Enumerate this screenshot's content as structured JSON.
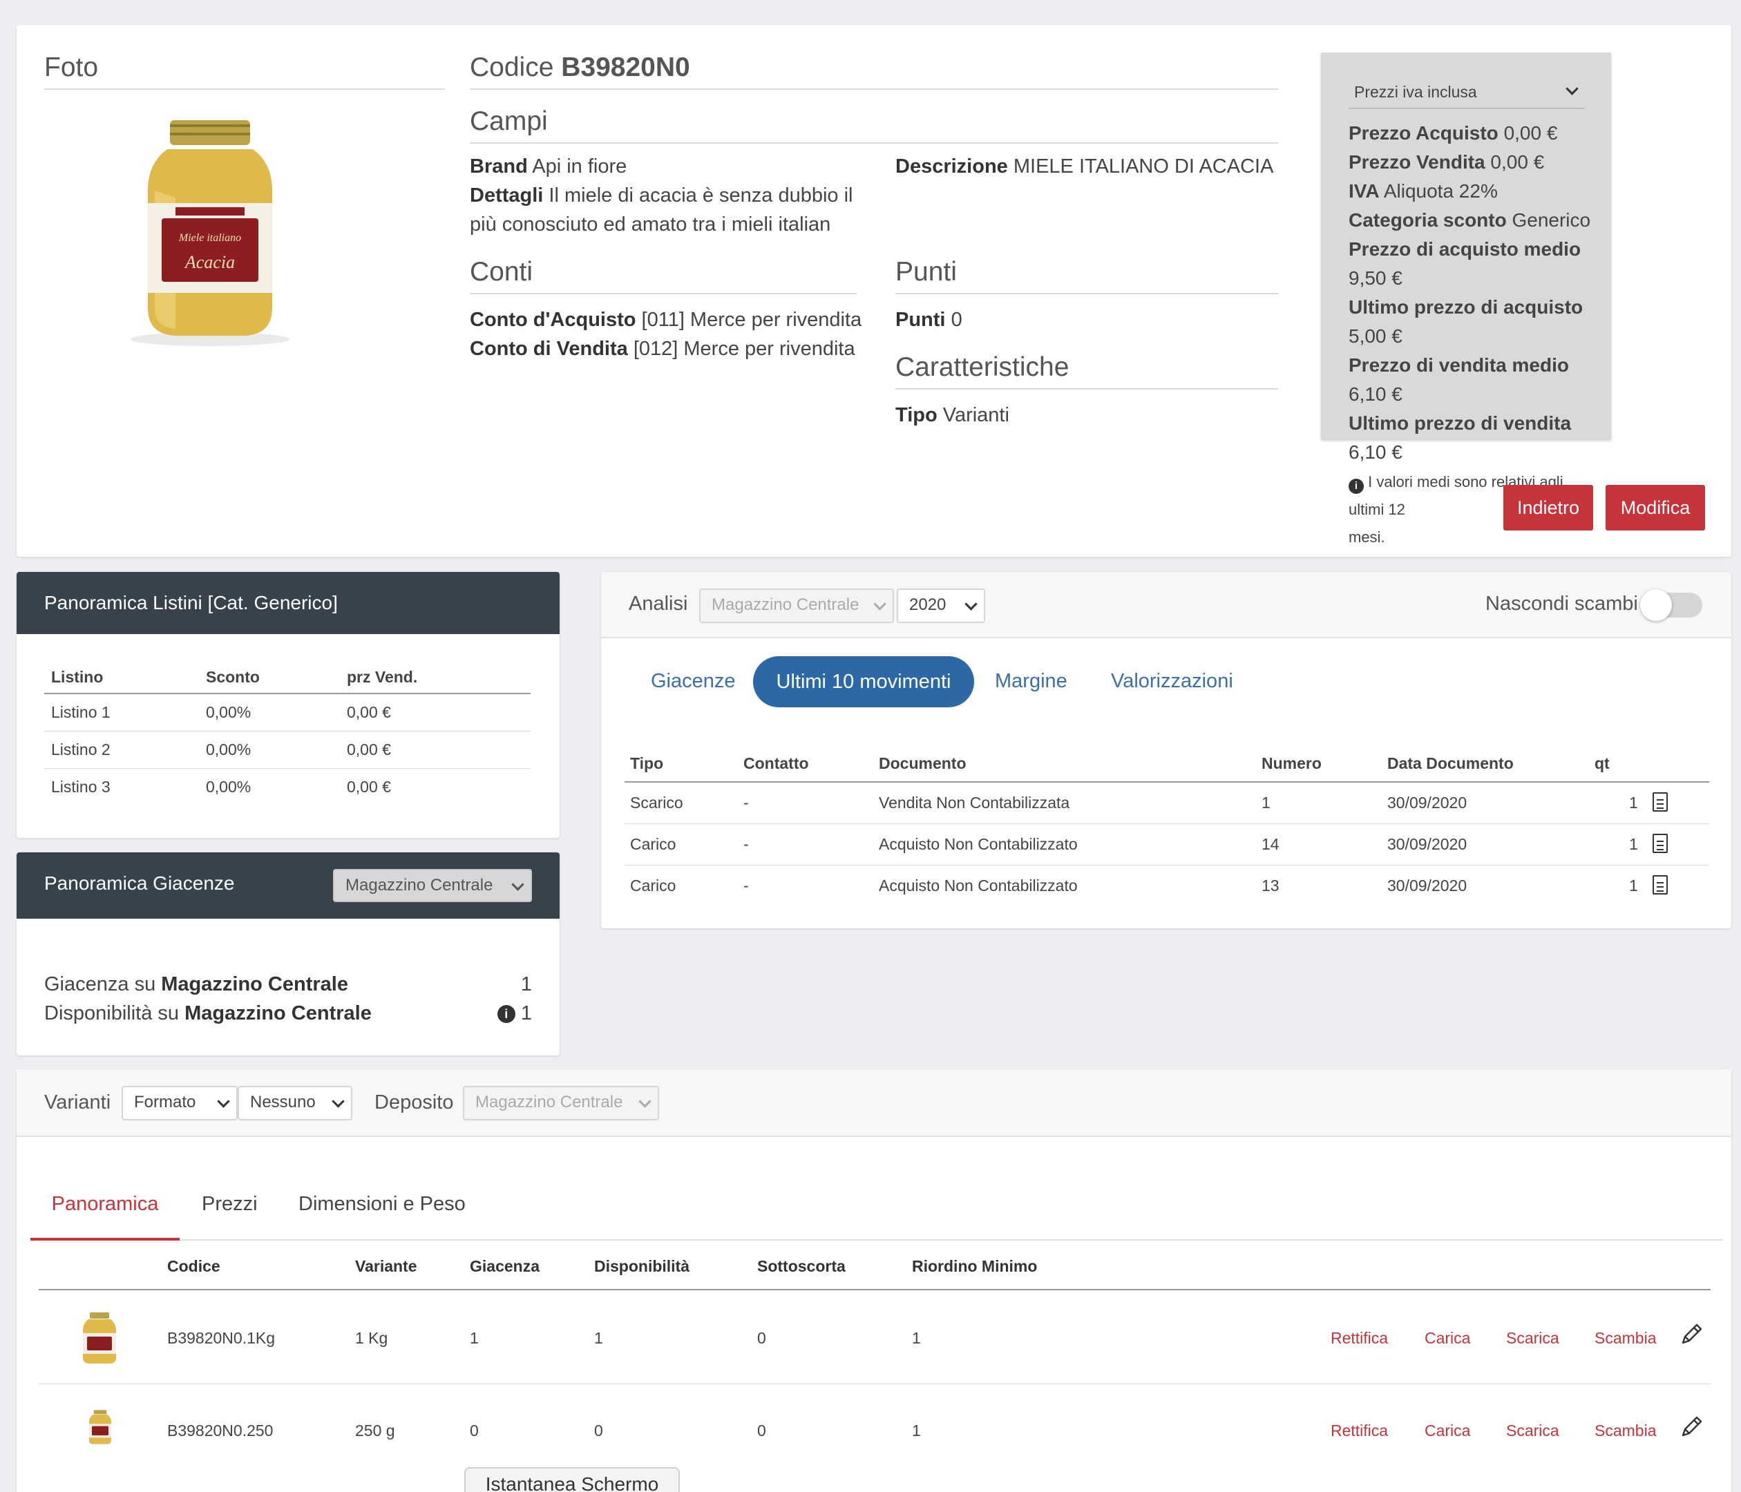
{
  "header": {
    "foto_title": "Foto",
    "codice_label": "Codice",
    "codice_value": "B39820N0"
  },
  "campi": {
    "title": "Campi",
    "brand_label": "Brand",
    "brand_value": "Api in fiore",
    "dettagli_label": "Dettagli",
    "dettagli_value_1": "Il miele di acacia è senza dubbio il",
    "dettagli_value_2": "più conosciuto ed amato tra i mieli italian",
    "descrizione_label": "Descrizione",
    "descrizione_value": "MIELE ITALIANO DI ACACIA"
  },
  "conti": {
    "title": "Conti",
    "acquisto_label": "Conto d'Acquisto",
    "acquisto_value": "[011] Merce per rivendita",
    "vendita_label": "Conto di Vendita",
    "vendita_value": "[012] Merce per rivendita"
  },
  "punti": {
    "title": "Punti",
    "label": "Punti",
    "value": "0"
  },
  "caratteristiche": {
    "title": "Caratteristiche",
    "tipo_label": "Tipo",
    "tipo_value": "Varianti"
  },
  "prezzi": {
    "select": "Prezzi iva inclusa",
    "rows": [
      {
        "label": "Prezzo Acquisto",
        "value": "0,00 €"
      },
      {
        "label": "Prezzo Vendita",
        "value": "0,00 €"
      },
      {
        "label": "IVA",
        "value": "Aliquota 22%"
      },
      {
        "label": "Categoria sconto",
        "value": "Generico"
      },
      {
        "label": "Prezzo di acquisto medio",
        "value": "9,50 €"
      },
      {
        "label": "Ultimo prezzo di acquisto",
        "value": "5,00 €"
      },
      {
        "label": "Prezzo di vendita medio",
        "value": "6,10 €"
      },
      {
        "label": "Ultimo prezzo di vendita",
        "value": "6,10 €"
      }
    ],
    "note_1": "I valori medi sono relativi agli ultimi 12",
    "note_2": "mesi."
  },
  "buttons": {
    "indietro": "Indietro",
    "modifica": "Modifica"
  },
  "listini": {
    "title": "Panoramica Listini [Cat. Generico]",
    "headers": [
      "Listino",
      "Sconto",
      "prz Vend."
    ],
    "rows": [
      [
        "Listino 1",
        "0,00%",
        "0,00 €"
      ],
      [
        "Listino 2",
        "0,00%",
        "0,00 €"
      ],
      [
        "Listino 3",
        "0,00%",
        "0,00 €"
      ]
    ]
  },
  "giacenze": {
    "title": "Panoramica Giacenze",
    "select": "Magazzino Centrale",
    "giacenza_prefix": "Giacenza su",
    "giacenza_mag": "Magazzino Centrale",
    "giacenza_value": "1",
    "disp_prefix": "Disponibilità su",
    "disp_mag": "Magazzino Centrale",
    "disp_value": "1"
  },
  "analisi": {
    "label": "Analisi",
    "magazzino": "Magazzino Centrale",
    "year": "2020",
    "nascondi": "Nascondi scambi",
    "tabs": [
      "Giacenze",
      "Ultimi 10 movimenti",
      "Margine",
      "Valorizzazioni"
    ],
    "headers": [
      "Tipo",
      "Contatto",
      "Documento",
      "Numero",
      "Data Documento",
      "qt"
    ],
    "rows": [
      [
        "Scarico",
        "-",
        "Vendita Non Contabilizzata",
        "1",
        "30/09/2020",
        "1"
      ],
      [
        "Carico",
        "-",
        "Acquisto Non Contabilizzato",
        "14",
        "30/09/2020",
        "1"
      ],
      [
        "Carico",
        "-",
        "Acquisto Non Contabilizzato",
        "13",
        "30/09/2020",
        "1"
      ]
    ]
  },
  "varianti": {
    "label": "Varianti",
    "formato": "Formato",
    "nessuno": "Nessuno",
    "deposito_label": "Deposito",
    "deposito": "Magazzino Centrale",
    "tabs": [
      "Panoramica",
      "Prezzi",
      "Dimensioni e Peso"
    ],
    "headers": [
      "Codice",
      "Variante",
      "Giacenza",
      "Disponibilità",
      "Sottoscorta",
      "Riordino Minimo"
    ],
    "rows": [
      [
        "B39820N0.1Kg",
        "1 Kg",
        "1",
        "1",
        "0",
        "1"
      ],
      [
        "B39820N0.250",
        "250 g",
        "0",
        "0",
        "0",
        "1"
      ]
    ],
    "actions": [
      "Rettifica",
      "Carica",
      "Scarica",
      "Scambia"
    ]
  },
  "snapshot": "Istantanea Schermo"
}
